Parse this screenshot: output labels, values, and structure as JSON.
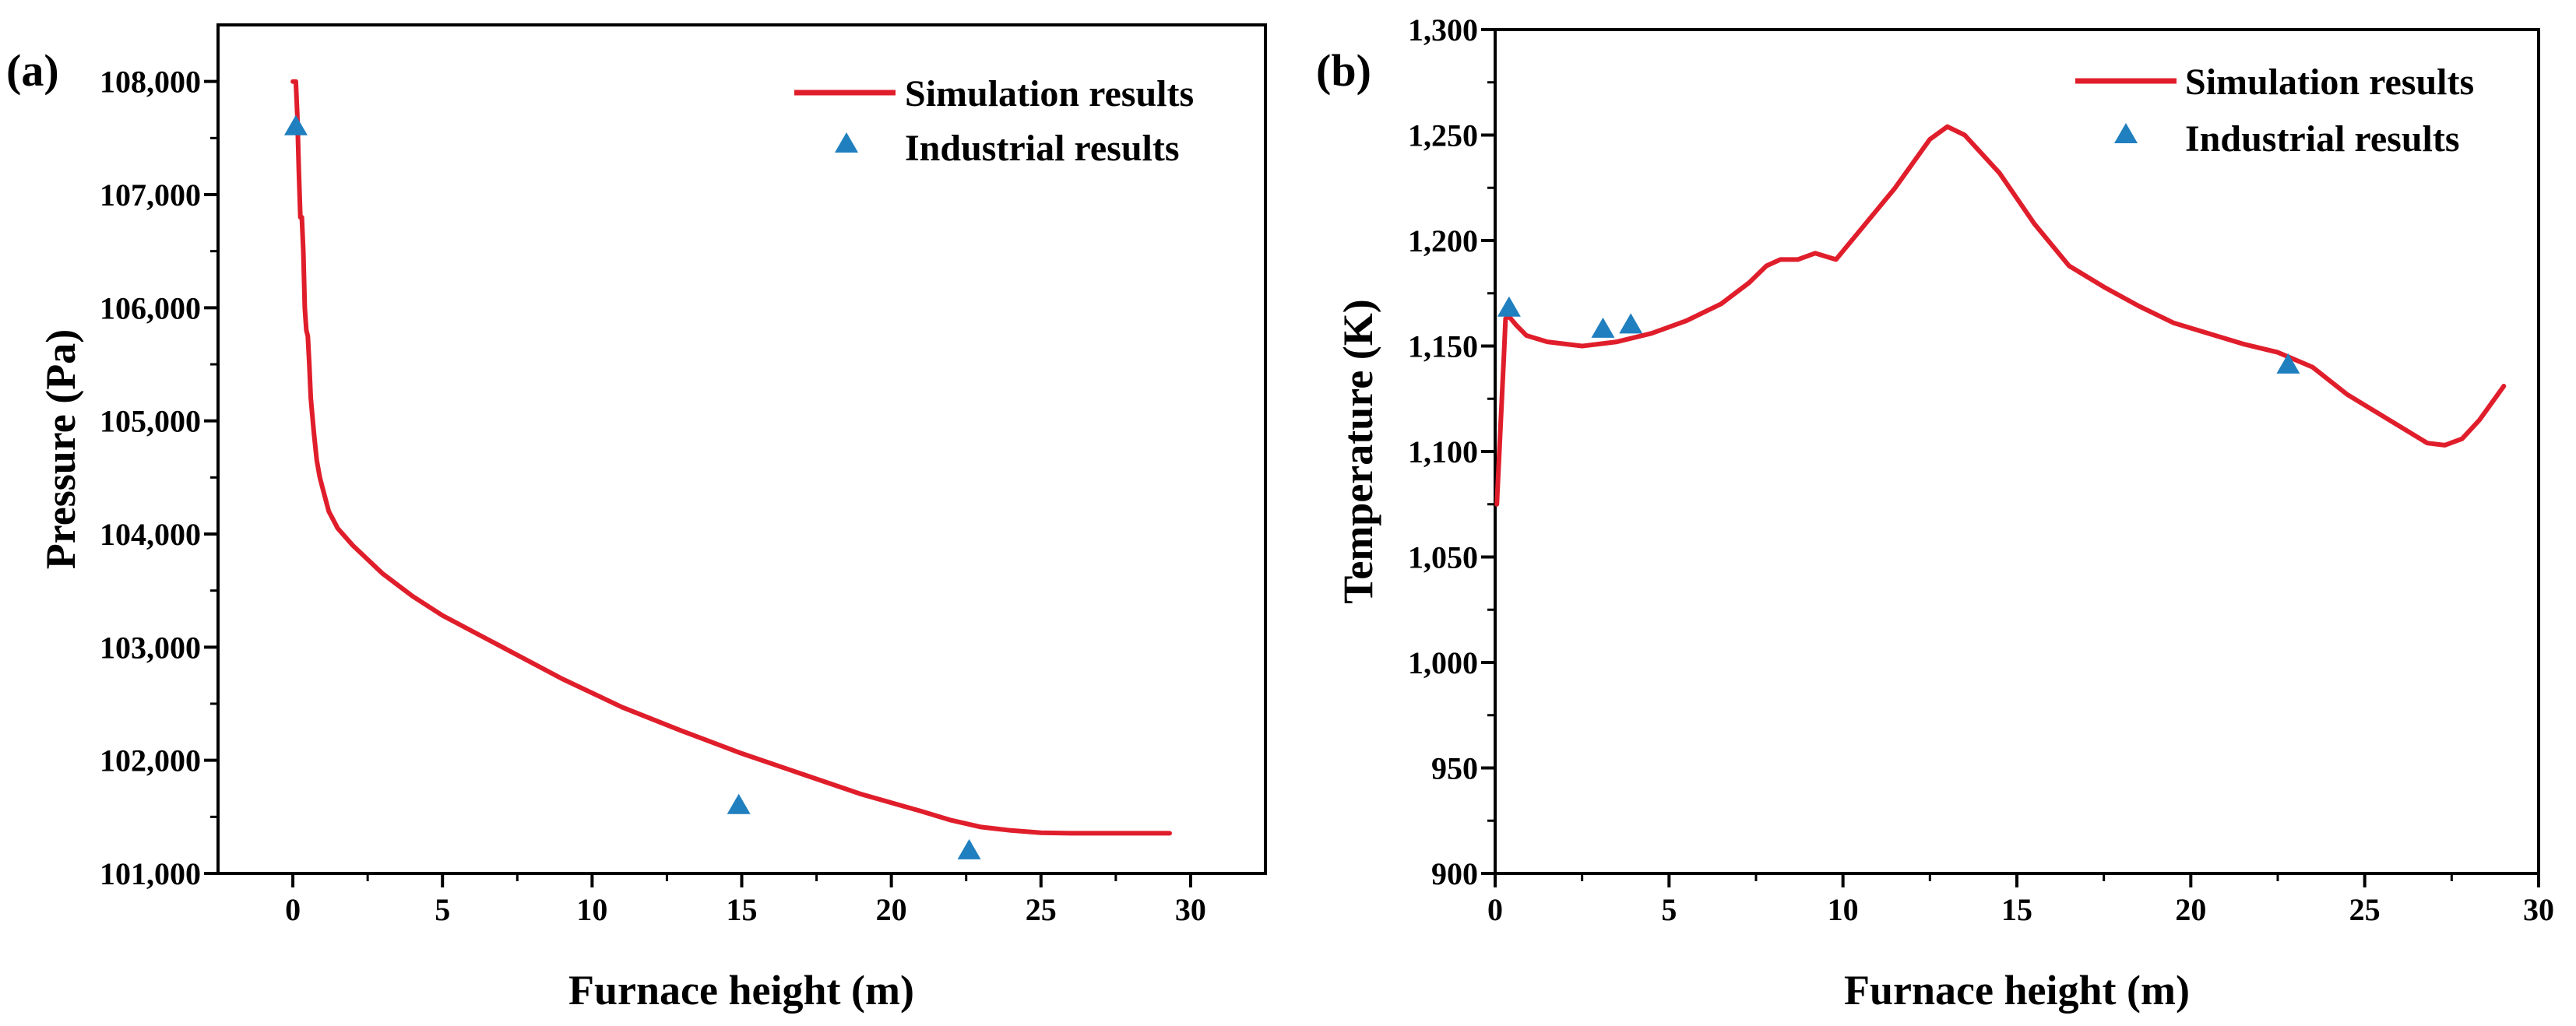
{
  "figure": {
    "colors": {
      "simulation": "#e01e2b",
      "industrial": "#1f7fbf",
      "axis": "#000000"
    }
  },
  "chart_data": [
    {
      "panel_label": "(a)",
      "type": "line",
      "xlabel": "Furnace height (m)",
      "ylabel": "Pressure (Pa)",
      "xlim": [
        -2.5,
        32.5
      ],
      "ylim": [
        101000,
        108500
      ],
      "xticks": [
        0,
        5,
        10,
        15,
        20,
        25,
        30
      ],
      "xtick_labels": [
        "0",
        "5",
        "10",
        "15",
        "20",
        "25",
        "30"
      ],
      "yticks": [
        101000,
        102000,
        103000,
        104000,
        105000,
        106000,
        107000,
        108000
      ],
      "ytick_labels": [
        "101,000",
        "102,000",
        "103,000",
        "104,000",
        "105,000",
        "106,000",
        "107,000",
        "108,000"
      ],
      "legend": {
        "position": "top-right",
        "entries": [
          "Simulation results",
          "Industrial results"
        ]
      },
      "series": [
        {
          "name": "Simulation results",
          "kind": "line",
          "x": [
            0,
            0.1,
            0.15,
            0.2,
            0.25,
            0.3,
            0.35,
            0.4,
            0.45,
            0.5,
            0.55,
            0.6,
            0.7,
            0.8,
            0.9,
            1.0,
            1.2,
            1.5,
            2,
            3,
            4,
            5,
            7,
            9,
            11,
            13,
            15,
            17,
            19,
            21,
            22,
            23,
            24,
            25,
            26,
            27,
            28,
            29.3
          ],
          "y": [
            108000,
            108000,
            107700,
            107200,
            106800,
            106800,
            106500,
            106000,
            105800,
            105750,
            105500,
            105200,
            104900,
            104650,
            104500,
            104400,
            104200,
            104050,
            103900,
            103650,
            103450,
            103280,
            103000,
            102720,
            102470,
            102260,
            102060,
            101880,
            101700,
            101550,
            101470,
            101410,
            101380,
            101360,
            101355,
            101355,
            101355,
            101355
          ]
        },
        {
          "name": "Industrial results",
          "kind": "marker",
          "x": [
            0.1,
            14.9,
            22.6
          ],
          "y": [
            107600,
            101600,
            101200
          ]
        }
      ]
    },
    {
      "panel_label": "(b)",
      "type": "line",
      "xlabel": "Furnace height (m)",
      "ylabel": "Temperature (K)",
      "xlim": [
        0,
        30
      ],
      "ylim": [
        900,
        1300
      ],
      "xticks": [
        0,
        5,
        10,
        15,
        20,
        25,
        30
      ],
      "xtick_labels": [
        "0",
        "5",
        "10",
        "15",
        "20",
        "25",
        "30"
      ],
      "yticks": [
        900,
        950,
        1000,
        1050,
        1100,
        1150,
        1200,
        1250,
        1300
      ],
      "ytick_labels": [
        "900",
        "950",
        "1,000",
        "1,050",
        "1,100",
        "1,150",
        "1,200",
        "1,250",
        "1,300"
      ],
      "legend": {
        "position": "top-right",
        "entries": [
          "Simulation results",
          "Industrial results"
        ]
      },
      "series": [
        {
          "name": "Simulation results",
          "kind": "line",
          "x": [
            0.05,
            0.15,
            0.25,
            0.3,
            0.4,
            0.6,
            0.9,
            1.5,
            2.5,
            3.5,
            4.5,
            5.5,
            6.5,
            7.3,
            7.8,
            8.2,
            8.7,
            9.2,
            9.8,
            10.5,
            11.5,
            12.5,
            13.0,
            13.5,
            14.5,
            15.5,
            16.5,
            17.5,
            18.5,
            19.5,
            20.5,
            21.5,
            22.5,
            23.5,
            24.5,
            25.5,
            26.2,
            26.8,
            27.3,
            27.8,
            28.3,
            29.0
          ],
          "y": [
            1075,
            1110,
            1145,
            1163,
            1164,
            1160,
            1155,
            1152,
            1150,
            1152,
            1156,
            1162,
            1170,
            1180,
            1188,
            1191,
            1191,
            1194,
            1191,
            1205,
            1225,
            1248,
            1254,
            1250,
            1232,
            1208,
            1188,
            1178,
            1169,
            1161,
            1156,
            1151,
            1147,
            1140,
            1127,
            1117,
            1110,
            1104,
            1103,
            1106,
            1115,
            1131
          ]
        },
        {
          "name": "Industrial results",
          "kind": "marker",
          "x": [
            0.4,
            3.1,
            3.9,
            22.8
          ],
          "y": [
            1168,
            1158,
            1160,
            1141
          ]
        }
      ]
    }
  ]
}
